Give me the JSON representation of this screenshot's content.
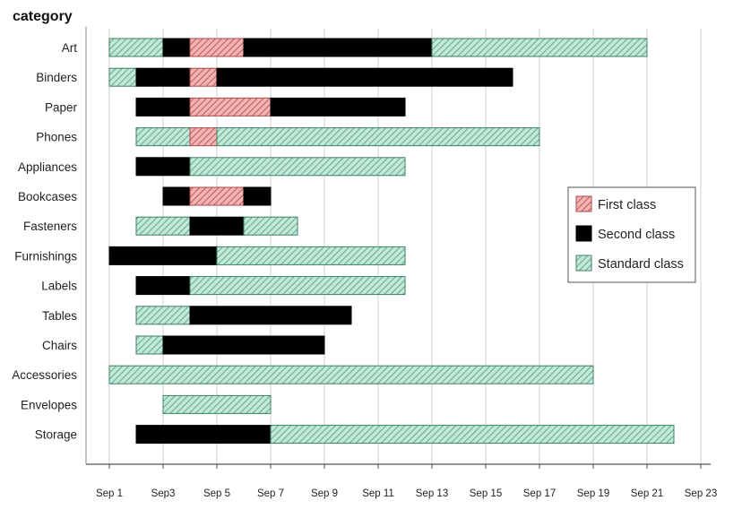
{
  "chart_data": {
    "type": "bar",
    "orientation": "horizontal",
    "stacked": "range",
    "ylabel": "category",
    "x_ticks": [
      "Sep 1",
      "Sep3",
      "Sep 5",
      "Sep 7",
      "Sep 9",
      "Sep 11",
      "Sep 13",
      "Sep 15",
      "Sep 17",
      "Sep 19",
      "Sep 21",
      "Sep 23"
    ],
    "xlim": [
      0.5,
      23
    ],
    "grid": "vertical",
    "legend_position": "right",
    "legend": [
      {
        "name": "First class",
        "key": "first",
        "fill": "#f2a9a9",
        "hatch": "#b85c5c"
      },
      {
        "name": "Second class",
        "key": "second",
        "fill": "#000000",
        "hatch": ""
      },
      {
        "name": "Standard class",
        "key": "standard",
        "fill": "#bde6d3",
        "hatch": "#3f8f70"
      }
    ],
    "categories": [
      "Art",
      "Binders",
      "Paper",
      "Phones",
      "Appliances",
      "Bookcases",
      "Fasteners",
      "Furnishings",
      "Labels",
      "Tables",
      "Chairs",
      "Accessories",
      "Envelopes",
      "Storage"
    ],
    "segments": [
      [
        [
          "standard",
          1,
          3
        ],
        [
          "second",
          3,
          4
        ],
        [
          "first",
          4,
          6
        ],
        [
          "second",
          6,
          13
        ],
        [
          "standard",
          13,
          21
        ]
      ],
      [
        [
          "standard",
          1,
          2
        ],
        [
          "second",
          2,
          4
        ],
        [
          "first",
          4,
          5
        ],
        [
          "second",
          5,
          16
        ]
      ],
      [
        [
          "second",
          2,
          4
        ],
        [
          "first",
          4,
          7
        ],
        [
          "second",
          7,
          12
        ]
      ],
      [
        [
          "standard",
          2,
          4
        ],
        [
          "first",
          4,
          5
        ],
        [
          "standard",
          5,
          17
        ]
      ],
      [
        [
          "second",
          2,
          4
        ],
        [
          "standard",
          4,
          12
        ]
      ],
      [
        [
          "second",
          3,
          4
        ],
        [
          "first",
          4,
          6
        ],
        [
          "second",
          6,
          7
        ]
      ],
      [
        [
          "standard",
          2,
          4
        ],
        [
          "second",
          4,
          6
        ],
        [
          "standard",
          6,
          8
        ]
      ],
      [
        [
          "second",
          1,
          5
        ],
        [
          "standard",
          5,
          12
        ]
      ],
      [
        [
          "second",
          2,
          4
        ],
        [
          "standard",
          4,
          12
        ]
      ],
      [
        [
          "standard",
          2,
          4
        ],
        [
          "second",
          4,
          10
        ]
      ],
      [
        [
          "standard",
          2,
          3
        ],
        [
          "second",
          3,
          9
        ]
      ],
      [
        [
          "standard",
          1,
          19
        ]
      ],
      [
        [
          "standard",
          3,
          7
        ]
      ],
      [
        [
          "second",
          2,
          7
        ],
        [
          "standard",
          7,
          22
        ]
      ]
    ]
  }
}
